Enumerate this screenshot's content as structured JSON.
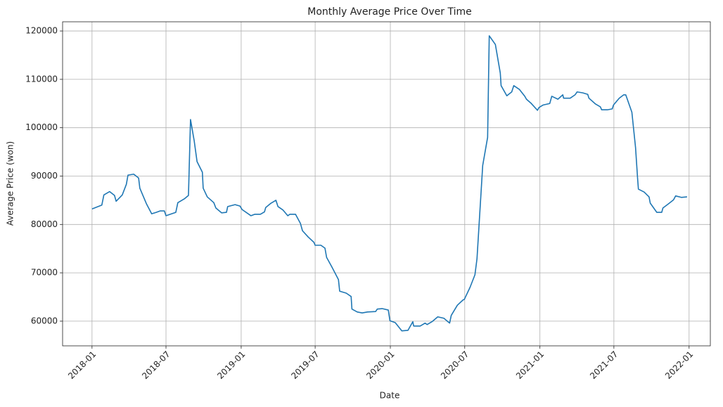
{
  "chart_data": {
    "type": "line",
    "title": "Monthly Average Price Over Time",
    "x_label": "Date",
    "y_label": "Average Price (won)",
    "grid": true,
    "xlim": [
      "2017-10-21",
      "2022-02-22"
    ],
    "ylim": [
      54900,
      121900
    ],
    "xticks": [
      "2018-01",
      "2018-07",
      "2019-01",
      "2019-07",
      "2020-01",
      "2020-07",
      "2021-01",
      "2021-07",
      "2022-01"
    ],
    "yticks": [
      60000,
      70000,
      80000,
      90000,
      100000,
      110000,
      120000
    ],
    "x": [
      "2018-01-01",
      "2018-01-25",
      "2018-01-30",
      "2018-02-13",
      "2018-02-25",
      "2018-03-01",
      "2018-03-16",
      "2018-03-26",
      "2018-03-30",
      "2018-04-13",
      "2018-04-25",
      "2018-04-28",
      "2018-05-14",
      "2018-05-27",
      "2018-06-07",
      "2018-06-17",
      "2018-06-27",
      "2018-07-01",
      "2018-07-25",
      "2018-07-30",
      "2018-08-15",
      "2018-08-25",
      "2018-08-30",
      "2018-09-08",
      "2018-09-15",
      "2018-09-28",
      "2018-09-30",
      "2018-10-10",
      "2018-10-26",
      "2018-10-31",
      "2018-11-14",
      "2018-11-26",
      "2018-11-29",
      "2018-12-17",
      "2018-12-29",
      "2019-01-03",
      "2019-01-25",
      "2019-02-03",
      "2019-02-17",
      "2019-02-27",
      "2019-03-02",
      "2019-03-15",
      "2019-03-27",
      "2019-04-01",
      "2019-04-13",
      "2019-04-25",
      "2019-04-30",
      "2019-05-14",
      "2019-05-26",
      "2019-05-31",
      "2019-06-14",
      "2019-06-28",
      "2019-07-01",
      "2019-07-15",
      "2019-07-25",
      "2019-07-29",
      "2019-08-11",
      "2019-08-27",
      "2019-08-30",
      "2019-09-15",
      "2019-09-27",
      "2019-09-29",
      "2019-10-12",
      "2019-10-24",
      "2019-11-06",
      "2019-11-26",
      "2019-11-30",
      "2019-12-12",
      "2019-12-27",
      "2019-12-31",
      "2020-01-13",
      "2020-01-29",
      "2020-02-13",
      "2020-02-25",
      "2020-02-27",
      "2020-03-14",
      "2020-03-26",
      "2020-03-31",
      "2020-04-12",
      "2020-04-26",
      "2020-05-11",
      "2020-05-25",
      "2020-05-29",
      "2020-06-13",
      "2020-06-27",
      "2020-06-30",
      "2020-07-14",
      "2020-07-26",
      "2020-07-31",
      "2020-08-14",
      "2020-08-26",
      "2020-08-30",
      "2020-09-14",
      "2020-09-26",
      "2020-09-28",
      "2020-10-12",
      "2020-10-24",
      "2020-10-29",
      "2020-11-12",
      "2020-11-25",
      "2020-11-29",
      "2020-12-11",
      "2020-12-26",
      "2020-12-30",
      "2021-01-09",
      "2021-01-25",
      "2021-01-30",
      "2021-02-14",
      "2021-02-26",
      "2021-02-28",
      "2021-03-16",
      "2021-03-28",
      "2021-04-02",
      "2021-04-16",
      "2021-04-28",
      "2021-05-01",
      "2021-05-17",
      "2021-05-29",
      "2021-06-01",
      "2021-06-15",
      "2021-06-27",
      "2021-06-30",
      "2021-07-14",
      "2021-07-25",
      "2021-07-30",
      "2021-08-14",
      "2021-08-23",
      "2021-08-28",
      "2021-08-30",
      "2021-09-13",
      "2021-09-25",
      "2021-09-28",
      "2021-10-14",
      "2021-10-26",
      "2021-10-29",
      "2021-11-12",
      "2021-11-24",
      "2021-11-29",
      "2021-12-13",
      "2021-12-27"
    ],
    "series": [
      {
        "name": "Average Price",
        "color": "#1f77b4",
        "values": [
          83200,
          84000,
          86100,
          86800,
          86000,
          84800,
          86100,
          88300,
          90200,
          90400,
          89600,
          87500,
          84300,
          82200,
          82500,
          82800,
          82800,
          81800,
          82500,
          84500,
          85300,
          86000,
          101700,
          97300,
          93000,
          90800,
          87500,
          85700,
          84500,
          83400,
          82400,
          82500,
          83700,
          84100,
          83800,
          83100,
          81800,
          82100,
          82100,
          82600,
          83500,
          84400,
          85000,
          83700,
          83000,
          81800,
          82100,
          82100,
          80200,
          78700,
          77400,
          76300,
          75700,
          75700,
          75100,
          73200,
          71200,
          68600,
          66200,
          65800,
          65100,
          62500,
          61900,
          61700,
          61900,
          62000,
          62500,
          62600,
          62300,
          60100,
          59700,
          58000,
          58100,
          59900,
          59000,
          59000,
          59600,
          59300,
          59900,
          60900,
          60600,
          59600,
          61200,
          63300,
          64400,
          64500,
          67000,
          69600,
          72900,
          92200,
          98000,
          119000,
          117200,
          111300,
          108700,
          106600,
          107400,
          108700,
          107900,
          106500,
          105900,
          105000,
          103600,
          104200,
          104700,
          105000,
          106500,
          105900,
          106800,
          106100,
          106100,
          106800,
          107400,
          107200,
          106900,
          106100,
          104900,
          104300,
          103700,
          103700,
          103900,
          104700,
          106100,
          106800,
          106800,
          103200,
          95900,
          89500,
          87300,
          86700,
          85700,
          84400,
          82500,
          82500,
          83400,
          84300,
          85100,
          85900,
          85600,
          85700
        ]
      }
    ]
  }
}
